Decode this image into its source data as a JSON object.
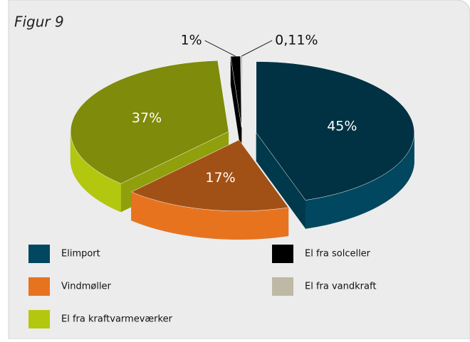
{
  "chart_data": {
    "type": "pie",
    "title": "Figur 9",
    "categories": [
      "Elimport",
      "Vindmøller",
      "El fra kraftvarmeværker",
      "El fra solceller",
      "El fra vandkraft"
    ],
    "values": [
      45,
      17,
      37,
      1,
      0.11
    ],
    "value_labels": [
      "45%",
      "17%",
      "37%",
      "1%",
      "0,11%"
    ],
    "colors": [
      "#00475f",
      "#e8731f",
      "#b4c70f",
      "#000000",
      "#bdb9a6"
    ],
    "legend": "bottom"
  }
}
